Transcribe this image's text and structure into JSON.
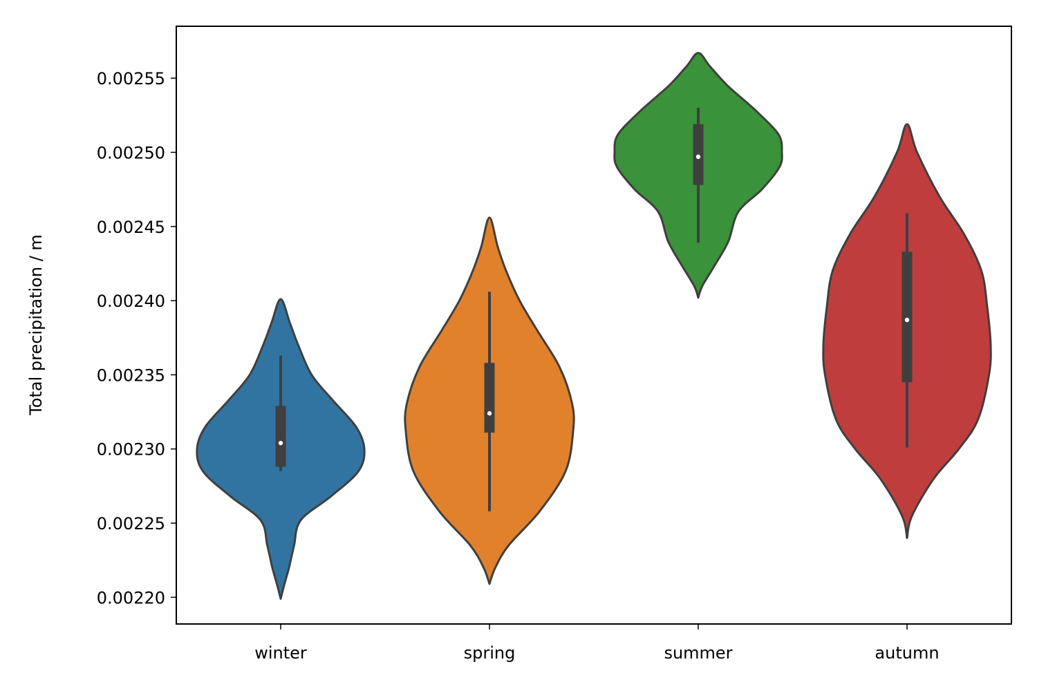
{
  "chart_data": {
    "type": "violin",
    "title": "",
    "xlabel": "",
    "ylabel": "Total precipitation / m",
    "ylim": [
      0.002182,
      0.002585
    ],
    "yticks": [
      "0.00220",
      "0.00225",
      "0.00230",
      "0.00235",
      "0.00240",
      "0.00245",
      "0.00250",
      "0.00255"
    ],
    "ytick_values": [
      0.0022,
      0.00225,
      0.0023,
      0.00235,
      0.0024,
      0.00245,
      0.0025,
      0.00255
    ],
    "categories": [
      "winter",
      "spring",
      "summer",
      "autumn"
    ],
    "series": [
      {
        "category": "winter",
        "color": "#3274a1",
        "min": 0.002285,
        "q1": 0.002288,
        "median": 0.002304,
        "q3": 0.002329,
        "max": 0.002363,
        "kde_low": 0.002199,
        "kde_high": 0.002401,
        "density": [
          [
            0.002199,
            0.0
          ],
          [
            0.00221,
            0.05
          ],
          [
            0.00222,
            0.1
          ],
          [
            0.002235,
            0.16
          ],
          [
            0.002252,
            0.24
          ],
          [
            0.002268,
            0.6
          ],
          [
            0.002285,
            0.93
          ],
          [
            0.0023,
            1.0
          ],
          [
            0.002315,
            0.9
          ],
          [
            0.002333,
            0.62
          ],
          [
            0.00235,
            0.37
          ],
          [
            0.00237,
            0.21
          ],
          [
            0.002385,
            0.11
          ],
          [
            0.002401,
            0.0
          ]
        ]
      },
      {
        "category": "spring",
        "color": "#e1812c",
        "min": 0.002258,
        "q1": 0.002311,
        "median": 0.002324,
        "q3": 0.002358,
        "max": 0.002406,
        "kde_low": 0.002209,
        "kde_high": 0.002456,
        "density": [
          [
            0.002209,
            0.0
          ],
          [
            0.00222,
            0.07
          ],
          [
            0.002235,
            0.23
          ],
          [
            0.002258,
            0.6
          ],
          [
            0.002285,
            0.91
          ],
          [
            0.002312,
            1.0
          ],
          [
            0.00233,
            0.99
          ],
          [
            0.002355,
            0.84
          ],
          [
            0.00238,
            0.57
          ],
          [
            0.0024,
            0.36
          ],
          [
            0.00242,
            0.2
          ],
          [
            0.002436,
            0.1
          ],
          [
            0.002456,
            0.0
          ]
        ]
      },
      {
        "category": "summer",
        "color": "#3a923a",
        "min": 0.002439,
        "q1": 0.002478,
        "median": 0.002497,
        "q3": 0.002519,
        "max": 0.00253,
        "kde_low": 0.002402,
        "kde_high": 0.002567,
        "density": [
          [
            0.002402,
            0.0
          ],
          [
            0.00241,
            0.05
          ],
          [
            0.002425,
            0.21
          ],
          [
            0.00244,
            0.36
          ],
          [
            0.00246,
            0.48
          ],
          [
            0.002475,
            0.76
          ],
          [
            0.00249,
            0.97
          ],
          [
            0.0025,
            1.0
          ],
          [
            0.002512,
            0.96
          ],
          [
            0.002528,
            0.69
          ],
          [
            0.002545,
            0.35
          ],
          [
            0.002558,
            0.14
          ],
          [
            0.002567,
            0.0
          ]
        ]
      },
      {
        "category": "autumn",
        "color": "#c03d3e",
        "min": 0.002301,
        "q1": 0.002345,
        "median": 0.002387,
        "q3": 0.002433,
        "max": 0.002459,
        "kde_low": 0.00224,
        "kde_high": 0.002519,
        "density": [
          [
            0.00224,
            0.0
          ],
          [
            0.002255,
            0.06
          ],
          [
            0.00228,
            0.32
          ],
          [
            0.0023,
            0.62
          ],
          [
            0.00232,
            0.85
          ],
          [
            0.00235,
            0.98
          ],
          [
            0.00237,
            1.0
          ],
          [
            0.002395,
            0.96
          ],
          [
            0.00242,
            0.89
          ],
          [
            0.002445,
            0.68
          ],
          [
            0.00247,
            0.39
          ],
          [
            0.0025,
            0.12
          ],
          [
            0.002519,
            0.0
          ]
        ]
      }
    ],
    "grid": false,
    "legend": "none"
  }
}
